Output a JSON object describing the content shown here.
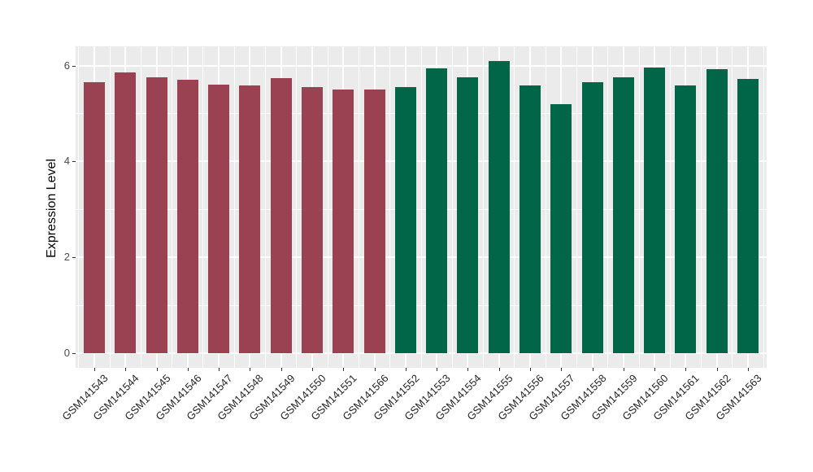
{
  "chart_data": {
    "type": "bar",
    "title": "",
    "xlabel": "",
    "ylabel": "Expression Level",
    "ylim": [
      0,
      6.4
    ],
    "yticks": [
      0,
      2,
      4,
      6
    ],
    "minor_yticks": [
      1,
      3,
      5
    ],
    "grid": "on",
    "legend": "none",
    "panel_background": "#ebebeb",
    "gridline_color": "#ffffff",
    "categories": [
      "GSM141543",
      "GSM141544",
      "GSM141545",
      "GSM141546",
      "GSM141547",
      "GSM141548",
      "GSM141549",
      "GSM141550",
      "GSM141551",
      "GSM141566",
      "GSM141552",
      "GSM141553",
      "GSM141554",
      "GSM141555",
      "GSM141556",
      "GSM141557",
      "GSM141558",
      "GSM141559",
      "GSM141560",
      "GSM141561",
      "GSM141562",
      "GSM141563"
    ],
    "values": [
      5.65,
      5.85,
      5.75,
      5.71,
      5.6,
      5.59,
      5.74,
      5.56,
      5.5,
      5.5,
      5.55,
      5.95,
      5.75,
      6.09,
      5.58,
      5.2,
      5.65,
      5.75,
      5.96,
      5.59,
      5.93,
      5.73
    ],
    "groups": [
      "group1",
      "group1",
      "group1",
      "group1",
      "group1",
      "group1",
      "group1",
      "group1",
      "group1",
      "group1",
      "group2",
      "group2",
      "group2",
      "group2",
      "group2",
      "group2",
      "group2",
      "group2",
      "group2",
      "group2",
      "group2",
      "group2"
    ],
    "group_colors": {
      "group1": "#9a4251",
      "group2": "#006647"
    }
  }
}
